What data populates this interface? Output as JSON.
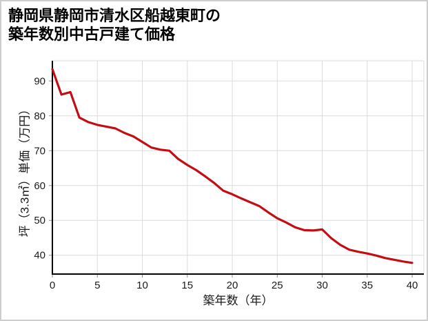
{
  "page": {
    "background": "#ffffff",
    "border_color": "#cdcdcd"
  },
  "title": {
    "line1": "静岡県静岡市清水区船越東町の",
    "line2": "築年数別中古戸建て価格"
  },
  "chart_data": {
    "type": "line",
    "title": "静岡県静岡市清水区船越東町の築年数別中古戸建て価格",
    "xlabel": "築年数（年）",
    "ylabel": "坪（3.3㎡）単価（万円）",
    "x_ticks": [
      0,
      5,
      10,
      15,
      20,
      25,
      30,
      35,
      40
    ],
    "y_ticks": [
      40,
      50,
      60,
      70,
      80,
      90
    ],
    "xlim": [
      0,
      41.3
    ],
    "ylim": [
      34.6,
      95.8
    ],
    "grid": true,
    "legend": "none",
    "line_color": "#c40d12",
    "grid_color": "#dcdcdc",
    "axis_color": "#000000",
    "tick_color": "#8a8a8a",
    "text_color": "#1a1a1a",
    "x": [
      0,
      1,
      2,
      3,
      4,
      5,
      6,
      7,
      8,
      9,
      10,
      11,
      12,
      13,
      14,
      15,
      16,
      17,
      18,
      19,
      20,
      21,
      22,
      23,
      24,
      25,
      26,
      27,
      28,
      29,
      30,
      31,
      32,
      33,
      34,
      35,
      36,
      37,
      38,
      39,
      40
    ],
    "y": [
      93.4,
      86.1,
      86.8,
      79.5,
      78.2,
      77.4,
      76.9,
      76.4,
      75.1,
      74.1,
      72.5,
      70.9,
      70.3,
      70.0,
      67.6,
      65.9,
      64.4,
      62.6,
      60.7,
      58.5,
      57.5,
      56.3,
      55.2,
      54.1,
      52.3,
      50.6,
      49.4,
      48.0,
      47.2,
      47.1,
      47.4,
      44.9,
      43.0,
      41.6,
      41.0,
      40.5,
      39.9,
      39.2,
      38.7,
      38.2,
      37.8
    ]
  }
}
